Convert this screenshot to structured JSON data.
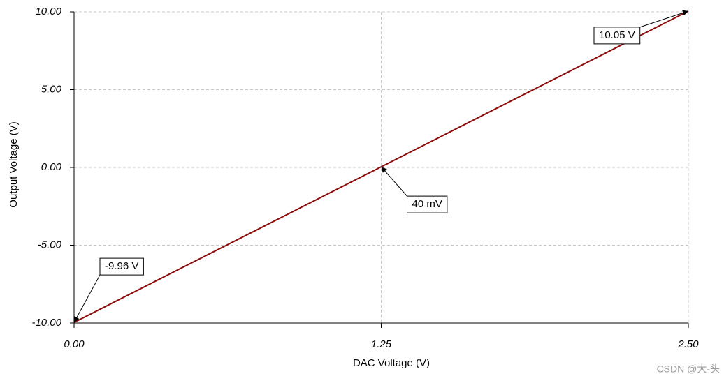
{
  "chart_data": {
    "type": "line",
    "x_label": "DAC Voltage (V)",
    "y_label": "Output Voltage (V)",
    "x": [
      0,
      1.25,
      2.5
    ],
    "series": [
      {
        "color": "#8b0a0a",
        "values": [
          -9.96,
          0.04,
          10.05
        ],
        "value_labels": [
          "-9.96 V",
          "40 mV",
          "10.05 V"
        ]
      }
    ],
    "xlim": [
      0,
      2.5
    ],
    "xticks": [
      {
        "value": 0,
        "label": "0.00"
      },
      1.25,
      {
        "value": 2.5,
        "label": "2.50"
      }
    ],
    "ylim": [
      -10,
      10
    ],
    "yticks": [
      {
        "value": 10,
        "label": "10.00"
      },
      {
        "value": 5,
        "label": "5.00"
      },
      {
        "value": 0,
        "label": "0.00"
      },
      {
        "value": -5,
        "label": "-5.00"
      },
      {
        "value": -10,
        "label": "-10.00"
      }
    ],
    "grid": true,
    "watermark": "CSDN @大-头"
  }
}
